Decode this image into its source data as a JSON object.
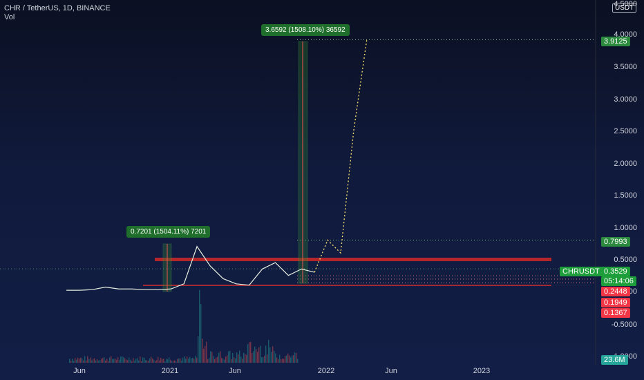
{
  "header": {
    "symbol": "CHR / TetherUS, 1D, BINANCE",
    "indicator": "Vol"
  },
  "unit_label": "USDT",
  "y_axis": {
    "ticks": [
      "4.5000",
      "4.0000",
      "3.5000",
      "3.0000",
      "2.5000",
      "2.0000",
      "1.5000",
      "1.0000",
      "0.5000",
      "0.0000",
      "-0.5000",
      "-1.0000"
    ]
  },
  "x_axis": {
    "ticks": [
      "Jun",
      "2021",
      "Jun",
      "2022",
      "Jun",
      "2023"
    ]
  },
  "price_tags": [
    {
      "text": "3.9125",
      "color": "#2b8a3e"
    },
    {
      "text": "0.7993",
      "color": "#2b8a3e"
    },
    {
      "text": "0.3529",
      "color": "#1e9e3a"
    },
    {
      "text": "05:14:06",
      "color": "#1e9e3a"
    },
    {
      "text": "0.2448",
      "color": "#f23645"
    },
    {
      "text": "0.1949",
      "color": "#f23645"
    },
    {
      "text": "0.1367",
      "color": "#f23645"
    },
    {
      "text": "23.6M",
      "color": "#26a69a"
    }
  ],
  "symbol_tag": "CHRUSDT",
  "annotations": {
    "measure1": "0.7201 (1504.11%) 7201",
    "measure2": "3.6592 (1508.10%) 36592"
  },
  "colors": {
    "up": "#26a69a",
    "down": "#ef5350",
    "price_line": "#e8f0e0",
    "projection": "#ffe66d",
    "resistance": "#c62828",
    "support": "#d32f2f",
    "measure": "#2e7d32"
  },
  "chart_data": {
    "type": "line",
    "title": "CHR / TetherUS, 1D, BINANCE",
    "x_range": [
      "2020-05",
      "2023-12"
    ],
    "ylim": [
      -1.0,
      4.5
    ],
    "series": [
      {
        "name": "CHRUSDT",
        "dates": [
          "2020-05",
          "2020-06",
          "2020-07",
          "2020-08",
          "2020-09",
          "2020-10",
          "2020-11",
          "2020-12",
          "2021-01",
          "2021-02",
          "2021-03",
          "2021-04",
          "2021-05",
          "2021-06",
          "2021-07",
          "2021-08",
          "2021-09",
          "2021-10",
          "2021-11",
          "2021-12"
        ],
        "values": [
          0.02,
          0.02,
          0.03,
          0.07,
          0.04,
          0.04,
          0.03,
          0.03,
          0.04,
          0.12,
          0.7,
          0.4,
          0.2,
          0.12,
          0.1,
          0.35,
          0.45,
          0.25,
          0.35,
          0.3
        ]
      },
      {
        "name": "projection",
        "dates": [
          "2021-12",
          "2022-01",
          "2022-02",
          "2022-03",
          "2022-04"
        ],
        "values": [
          0.3,
          0.8,
          0.6,
          2.5,
          3.91
        ]
      }
    ],
    "horizontal_levels": [
      3.9125,
      0.7993,
      0.3529,
      0.2448,
      0.1949,
      0.1367
    ],
    "volume_last": "23.6M"
  }
}
